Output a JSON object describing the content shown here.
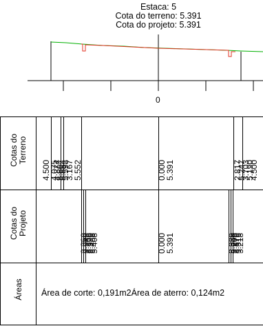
{
  "header": {
    "estaca": "Estaca: 5",
    "cota_terreno": "Cota do terreno: 5.391",
    "cota_projeto": "Cota do projeto: 5.391"
  },
  "profile": {
    "axis_label": "0",
    "colors": {
      "terrain": "#00b000",
      "project": "#e03020",
      "lines": "#000000"
    }
  },
  "table": {
    "row_labels": {
      "terreno": [
        "Cotas do",
        "Terreno"
      ],
      "projeto": [
        "Cotas do",
        "Projeto"
      ],
      "areas": "Áreas"
    },
    "terreno_values": [
      "4.500",
      "4.075",
      "4.874",
      "5.604",
      "5.554",
      "5.598",
      "3.167",
      "5.552",
      "0.000",
      "5.391",
      "2.817",
      "5.247",
      "3.703",
      "5.190",
      "4.500"
    ],
    "projeto_values": [
      "3.368",
      "5.548",
      "3.366",
      "5.590",
      "5.468",
      "5.408",
      "0.000",
      "5.391",
      "3.329",
      "5.200",
      "3.870",
      "5.316",
      "3.218"
    ],
    "areas_text": "Área de corte: 0,191m2Área de aterro: 0,124m2"
  }
}
